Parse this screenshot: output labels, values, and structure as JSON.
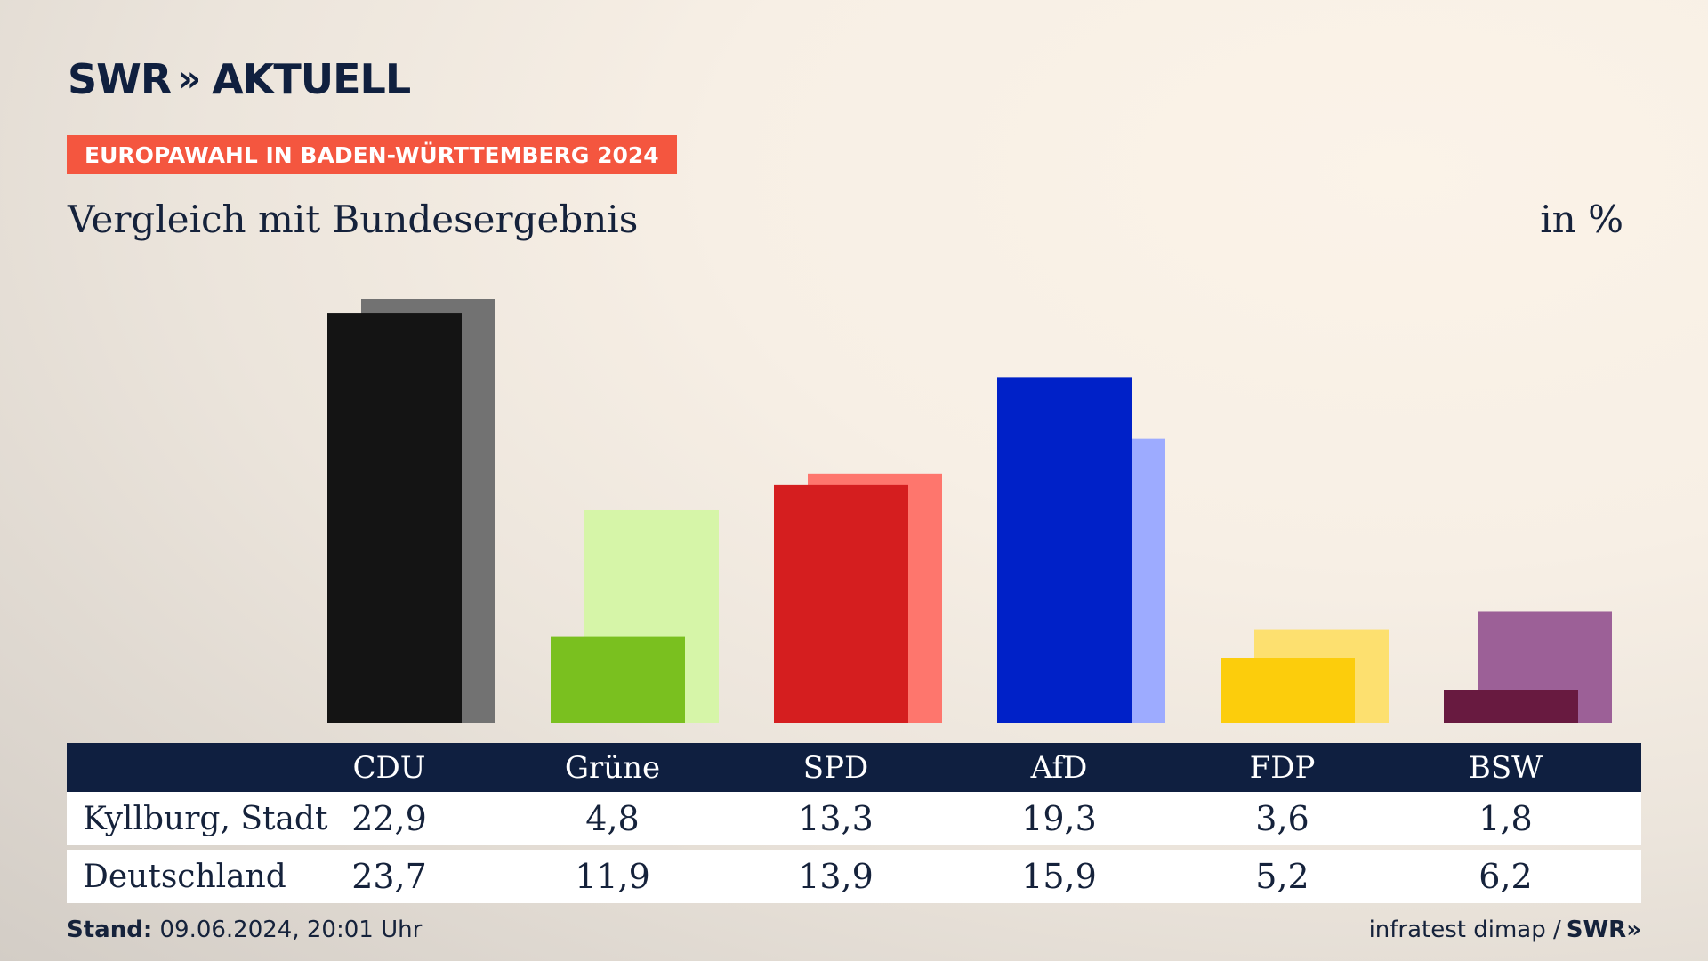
{
  "header": {
    "logo_text": "SWR",
    "logo_chevrons": "»",
    "logo_suffix": "AKTUELL",
    "banner": "EUROPAWAHL IN BADEN-WÜRTTEMBERG 2024",
    "subtitle": "Vergleich mit Bundesergebnis",
    "unit": "in %"
  },
  "table": {
    "rows": [
      {
        "label": "Kyllburg, Stadt",
        "values": [
          "22,9",
          "4,8",
          "13,3",
          "19,3",
          "3,6",
          "1,8"
        ]
      },
      {
        "label": "Deutschland",
        "values": [
          "23,7",
          "11,9",
          "13,9",
          "15,9",
          "5,2",
          "6,2"
        ]
      }
    ]
  },
  "footer": {
    "stand_label": "Stand:",
    "stand_value": "09.06.2024, 20:01 Uhr",
    "source": "infratest dimap /",
    "source_logo": "SWR»"
  },
  "chart_data": {
    "type": "bar",
    "title": "Vergleich mit Bundesergebnis",
    "unit": "in %",
    "categories": [
      "CDU",
      "Grüne",
      "SPD",
      "AfD",
      "FDP",
      "BSW"
    ],
    "series": [
      {
        "name": "Kyllburg, Stadt",
        "values": [
          22.9,
          4.8,
          13.3,
          19.3,
          3.6,
          1.8
        ]
      },
      {
        "name": "Deutschland",
        "values": [
          23.7,
          11.9,
          13.9,
          15.9,
          5.2,
          6.2
        ]
      }
    ],
    "colors": {
      "primary": [
        "#141414",
        "#7ac01f",
        "#d51e1f",
        "#0021c8",
        "#fccd0c",
        "#681a40"
      ],
      "secondary": [
        "#727272",
        "#d6f5a8",
        "#fe766d",
        "#9dabff",
        "#fde06f",
        "#9c6097"
      ]
    },
    "ylim": [
      0,
      23.7
    ],
    "grid": false,
    "legend": "table-below"
  }
}
